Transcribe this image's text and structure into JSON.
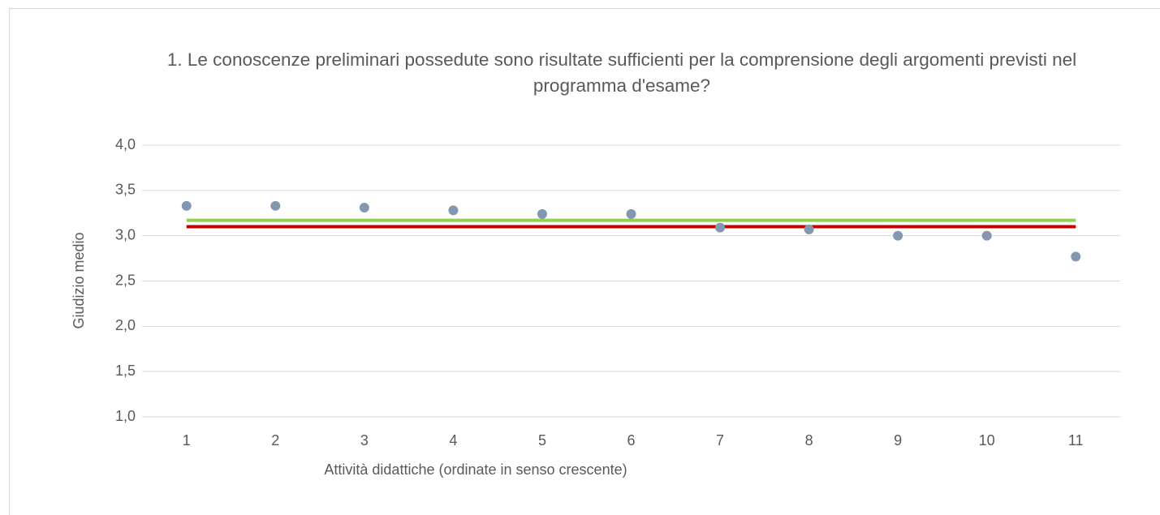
{
  "chart_data": {
    "type": "scatter",
    "title": "1. Le conoscenze preliminari possedute sono risultate sufficienti per la comprensione degli argomenti previsti nel programma d'esame?",
    "x_label": "Attività didattiche (ordinate in senso crescente)",
    "y_label": "Giudizio medio",
    "categories": [
      "1",
      "2",
      "3",
      "4",
      "5",
      "6",
      "7",
      "8",
      "9",
      "10",
      "11"
    ],
    "values": [
      3.33,
      3.33,
      3.31,
      3.28,
      3.24,
      3.24,
      3.09,
      3.07,
      3.0,
      3.0,
      2.77
    ],
    "color": "#8497b0",
    "lines": [
      {
        "color": "#92d050",
        "values": [
          3.17,
          3.17,
          3.17,
          3.17,
          3.17,
          3.17,
          3.17,
          3.17,
          3.17,
          3.17,
          3.17
        ]
      },
      {
        "color": "#c00000",
        "values": [
          3.1,
          3.1,
          3.1,
          3.1,
          3.1,
          3.1,
          3.1,
          3.1,
          3.1,
          3.1,
          3.1
        ]
      }
    ],
    "ylim": [
      1,
      4
    ],
    "yticks": [
      {
        "value": 1,
        "label": "1,0"
      },
      {
        "value": 1.5,
        "label": "1,5"
      },
      {
        "value": 2,
        "label": "2,0"
      },
      {
        "value": 2.5,
        "label": "2,5"
      },
      {
        "value": 3,
        "label": "3,0"
      },
      {
        "value": 3.5,
        "label": "3,5"
      },
      {
        "value": 4,
        "label": "4,0"
      }
    ],
    "grid": true
  }
}
